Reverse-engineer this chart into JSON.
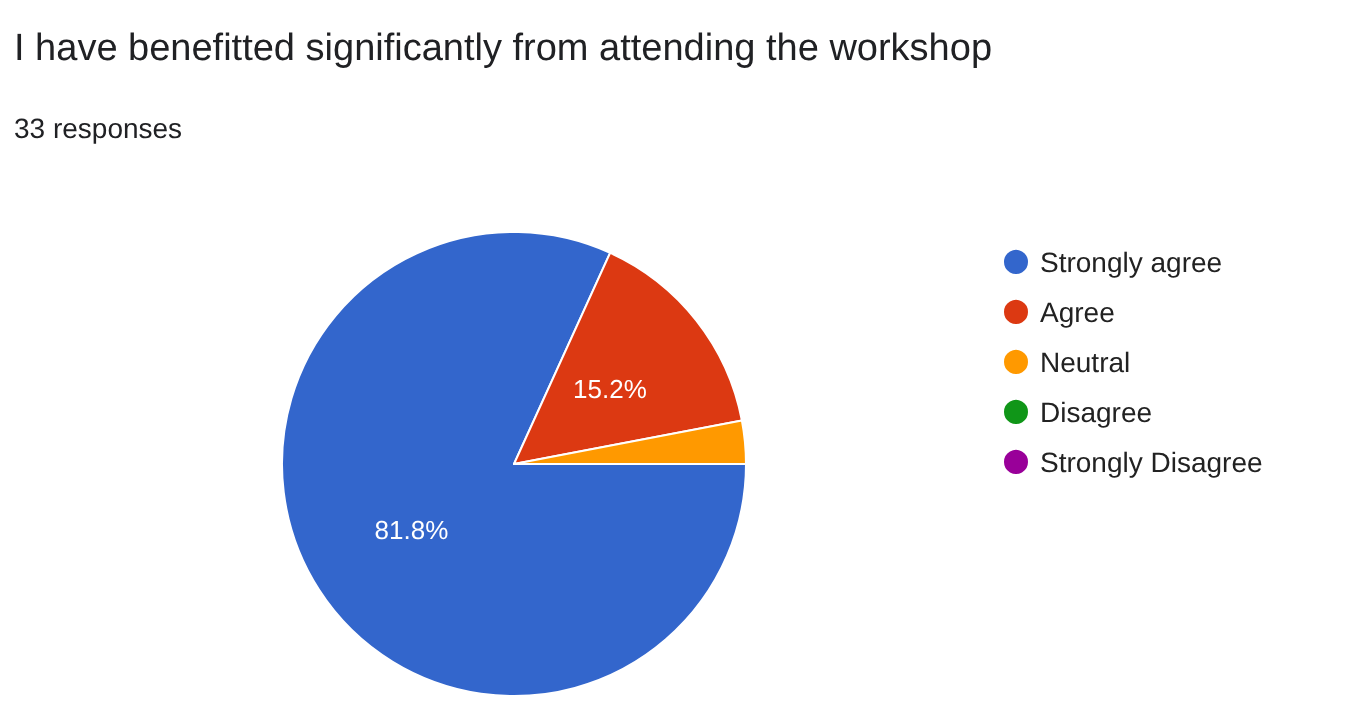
{
  "chart_data": {
    "type": "pie",
    "title": "I have benefitted significantly from attending the workshop",
    "subtitle": "33 responses",
    "categories": [
      "Strongly agree",
      "Agree",
      "Neutral",
      "Disagree",
      "Strongly Disagree"
    ],
    "values": [
      81.8,
      15.2,
      3.0,
      0,
      0
    ],
    "colors": [
      "#3366cc",
      "#dc3912",
      "#ff9900",
      "#109618",
      "#990099"
    ],
    "value_labels": [
      "81.8%",
      "15.2%",
      null,
      null,
      null
    ],
    "legend": "right"
  }
}
